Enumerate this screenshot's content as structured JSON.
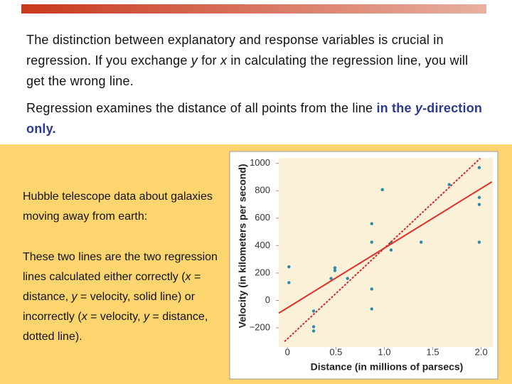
{
  "slide": {
    "paragraphs": [
      [
        "The distinction between explanatory and response variables is crucial in regression. If you exchange ",
        "y",
        " for ",
        "x",
        " in calculating the regression line, you will get the wrong line."
      ],
      [
        "Regression examines the distance of all points from the line ",
        "in the ",
        "y",
        "-direction only."
      ]
    ],
    "panel": [
      [
        "Hubble telescope data about galaxies moving away from earth:"
      ],
      [
        "These two lines are the two regression lines calculated either correctly (",
        "x",
        " = distance, ",
        "y",
        " = velocity, solid line) or incorrectly (",
        "x",
        " = velocity, ",
        "y",
        " = distance, dotted line)."
      ]
    ]
  },
  "chart_data": {
    "type": "scatter",
    "x_label": "Distance (in millions of parsecs)",
    "y_label": "Velocity (in kilometers per second)",
    "x": [
      0.015,
      0.015,
      0.27,
      0.27,
      0.27,
      0.45,
      0.49,
      0.49,
      0.62,
      0.98,
      0.87,
      0.87,
      0.87,
      0.87,
      1.07,
      1.07,
      1.38,
      1.67,
      1.98,
      1.98,
      1.98,
      1.98
    ],
    "values": [
      245,
      130,
      -78,
      -192,
      -223,
      160,
      238,
      218,
      160,
      808,
      560,
      425,
      83,
      -62,
      420,
      368,
      425,
      845,
      969,
      751,
      700,
      425
    ],
    "color": "#2a8aa8",
    "lines": [
      {
        "style": "solid",
        "color": "#e0302a",
        "x": [
          -0.09,
          2.11
        ],
        "y": [
          -93,
          865
        ]
      },
      {
        "style": "dotted",
        "color": "#d42a2a",
        "x": [
          -0.03,
          1.99
        ],
        "y": [
          -300,
          1036
        ]
      }
    ],
    "xlim": [
      -0.09,
      2.12
    ],
    "ylim": [
      -340,
      1040
    ],
    "xticks": [
      0,
      0.5,
      {
        "value": 1,
        "label": "1.0"
      },
      1.5,
      {
        "value": 2,
        "label": "2.0"
      }
    ],
    "yticks": [
      {
        "value": -200,
        "label": "−200"
      },
      0,
      200,
      400,
      600,
      800,
      1000
    ],
    "grid": false
  }
}
